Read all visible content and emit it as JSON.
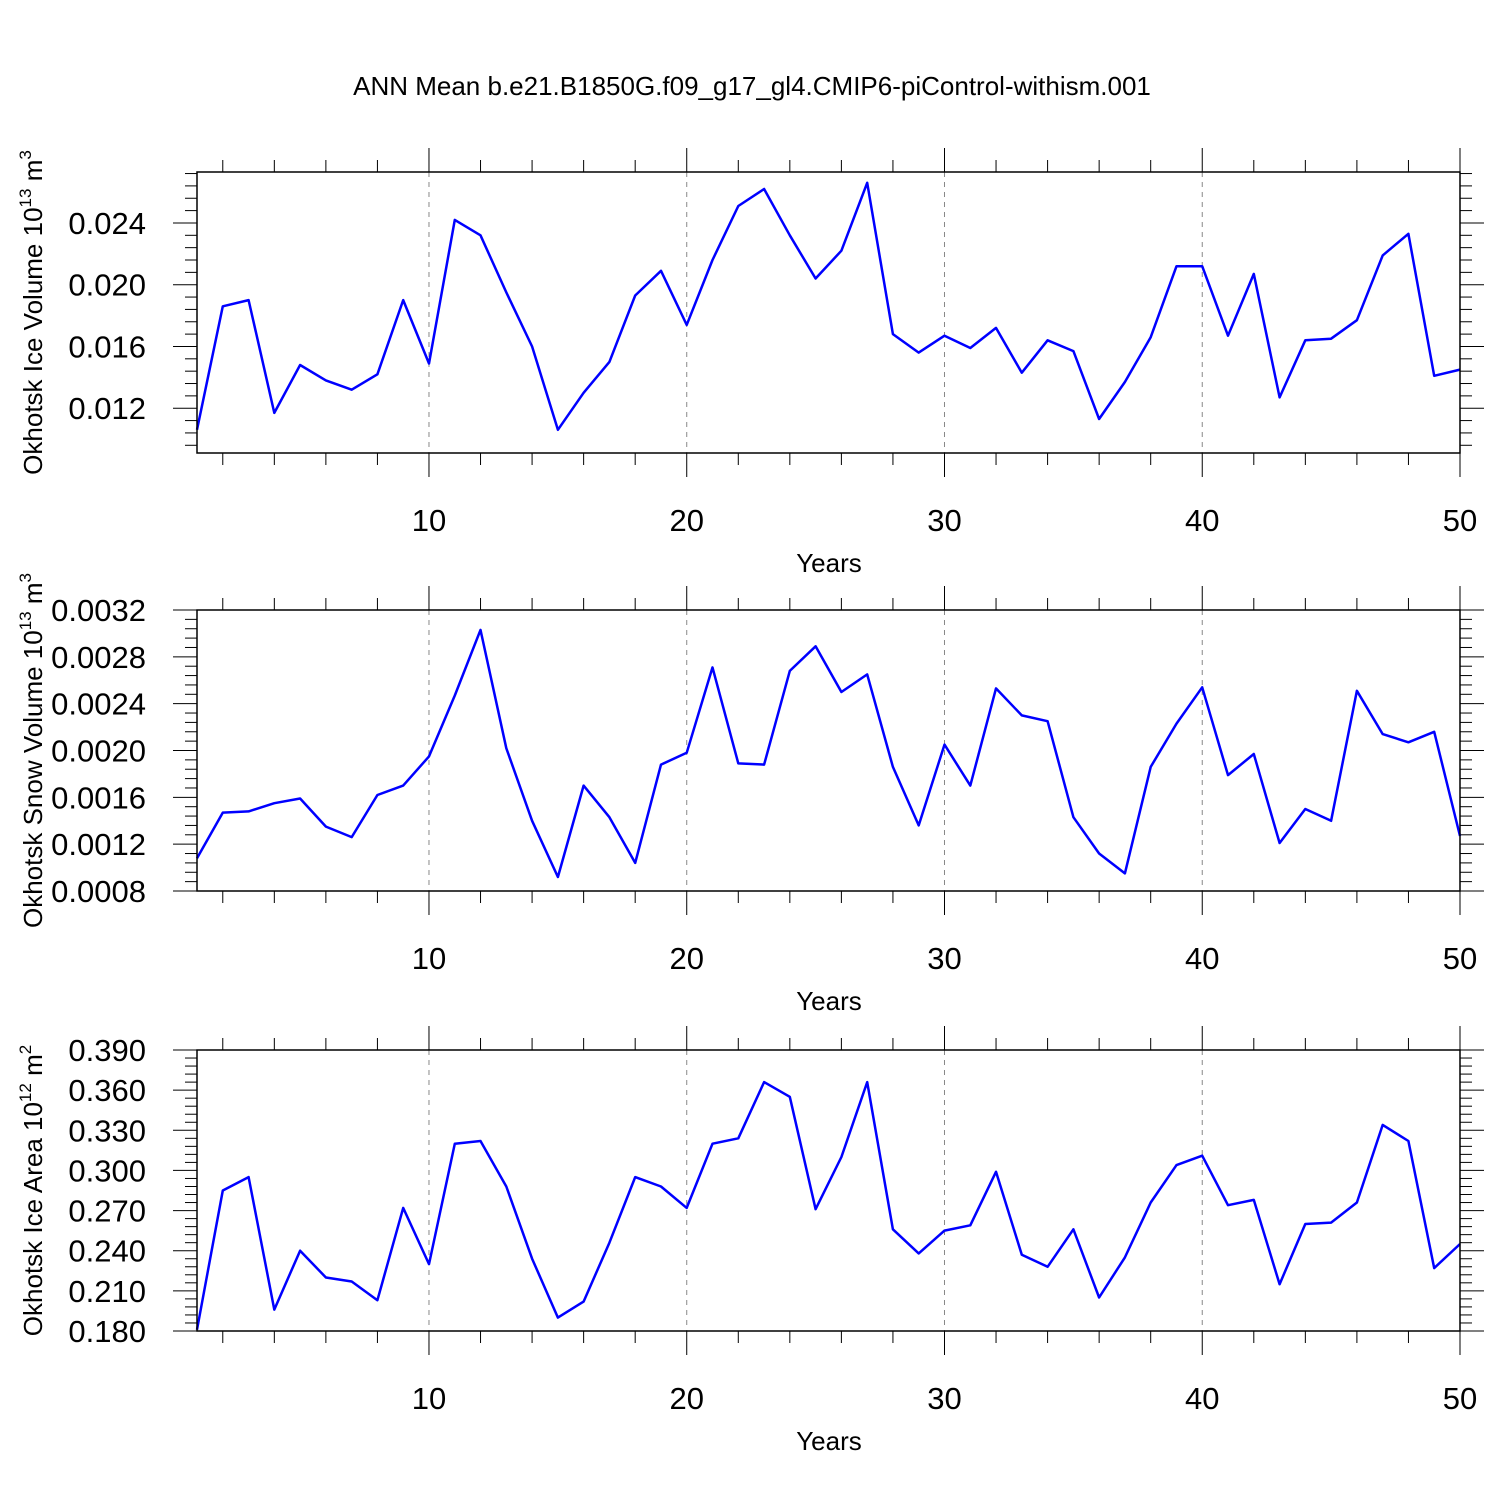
{
  "title": "ANN Mean b.e21.B1850G.f09_g17_gl4.CMIP6-piControl-withism.001",
  "line_color": "#0000ff",
  "chart_data": [
    {
      "type": "line",
      "ylabel_main": "Okhotsk Ice Volume 10",
      "ylabel_exp": "13",
      "ylabel_unit": " m",
      "ylabel_unit_exp": "3",
      "xlabel": "Years",
      "xlim": [
        1,
        50
      ],
      "ylim": [
        0.0091,
        0.0273
      ],
      "xticks": [
        10,
        20,
        30,
        40,
        50
      ],
      "xtick_labels": [
        "10",
        "20",
        "30",
        "40",
        "50"
      ],
      "yticks": [
        0.012,
        0.016,
        0.02,
        0.024
      ],
      "ytick_labels": [
        "0.012",
        "0.016",
        "0.020",
        "0.024"
      ],
      "grid": "dashed vertical at x ticks",
      "x": [
        1,
        2,
        3,
        4,
        5,
        6,
        7,
        8,
        9,
        10,
        11,
        12,
        13,
        14,
        15,
        16,
        17,
        18,
        19,
        20,
        21,
        22,
        23,
        24,
        25,
        26,
        27,
        28,
        29,
        30,
        31,
        32,
        33,
        34,
        35,
        36,
        37,
        38,
        39,
        40,
        41,
        42,
        43,
        44,
        45,
        46,
        47,
        48,
        49,
        50
      ],
      "series": [
        {
          "values": [
            0.0106,
            0.0186,
            0.019,
            0.0117,
            0.0148,
            0.0138,
            0.0132,
            0.0142,
            0.019,
            0.0149,
            0.0242,
            0.0232,
            0.0195,
            0.016,
            0.0106,
            0.013,
            0.015,
            0.0193,
            0.0209,
            0.0174,
            0.0216,
            0.0251,
            0.0262,
            0.0232,
            0.0204,
            0.0222,
            0.0266,
            0.0168,
            0.0156,
            0.0167,
            0.0159,
            0.0172,
            0.0143,
            0.0164,
            0.0157,
            0.0113,
            0.0137,
            0.0166,
            0.0212,
            0.0212,
            0.0167,
            0.0207,
            0.0127,
            0.0164,
            0.0165,
            0.0177,
            0.0219,
            0.0233,
            0.0141,
            0.0145
          ]
        }
      ]
    },
    {
      "type": "line",
      "ylabel_main": "Okhotsk Snow Volume 10",
      "ylabel_exp": "13",
      "ylabel_unit": " m",
      "ylabel_unit_exp": "3",
      "xlabel": "Years",
      "xlim": [
        1,
        50
      ],
      "ylim": [
        0.0008,
        0.0032
      ],
      "xticks": [
        10,
        20,
        30,
        40,
        50
      ],
      "xtick_labels": [
        "10",
        "20",
        "30",
        "40",
        "50"
      ],
      "yticks": [
        0.0008,
        0.0012,
        0.0016,
        0.002,
        0.0024,
        0.0028,
        0.0032
      ],
      "ytick_labels": [
        "0.0008",
        "0.0012",
        "0.0016",
        "0.0020",
        "0.0024",
        "0.0028",
        "0.0032"
      ],
      "grid": "dashed vertical at x ticks",
      "x": [
        1,
        2,
        3,
        4,
        5,
        6,
        7,
        8,
        9,
        10,
        11,
        12,
        13,
        14,
        15,
        16,
        17,
        18,
        19,
        20,
        21,
        22,
        23,
        24,
        25,
        26,
        27,
        28,
        29,
        30,
        31,
        32,
        33,
        34,
        35,
        36,
        37,
        38,
        39,
        40,
        41,
        42,
        43,
        44,
        45,
        46,
        47,
        48,
        49,
        50
      ],
      "series": [
        {
          "values": [
            0.00108,
            0.00147,
            0.00148,
            0.00155,
            0.00159,
            0.00135,
            0.00126,
            0.00162,
            0.0017,
            0.00195,
            0.00247,
            0.00303,
            0.00202,
            0.0014,
            0.00092,
            0.0017,
            0.00143,
            0.00104,
            0.00188,
            0.00198,
            0.00271,
            0.00189,
            0.00188,
            0.00268,
            0.00289,
            0.0025,
            0.00265,
            0.00186,
            0.00136,
            0.00205,
            0.0017,
            0.00253,
            0.0023,
            0.00225,
            0.00143,
            0.00112,
            0.00095,
            0.00186,
            0.00223,
            0.00254,
            0.00179,
            0.00197,
            0.00121,
            0.0015,
            0.0014,
            0.00251,
            0.00214,
            0.00207,
            0.00216,
            0.00127
          ]
        }
      ]
    },
    {
      "type": "line",
      "ylabel_main": "Okhotsk Ice Area 10",
      "ylabel_exp": "12",
      "ylabel_unit": " m",
      "ylabel_unit_exp": "2",
      "xlabel": "Years",
      "xlim": [
        1,
        50
      ],
      "ylim": [
        0.18,
        0.39
      ],
      "xticks": [
        10,
        20,
        30,
        40,
        50
      ],
      "xtick_labels": [
        "10",
        "20",
        "30",
        "40",
        "50"
      ],
      "yticks": [
        0.18,
        0.21,
        0.24,
        0.27,
        0.3,
        0.33,
        0.36,
        0.39
      ],
      "ytick_labels": [
        "0.180",
        "0.210",
        "0.240",
        "0.270",
        "0.300",
        "0.330",
        "0.360",
        "0.390"
      ],
      "grid": "dashed vertical at x ticks",
      "x": [
        1,
        2,
        3,
        4,
        5,
        6,
        7,
        8,
        9,
        10,
        11,
        12,
        13,
        14,
        15,
        16,
        17,
        18,
        19,
        20,
        21,
        22,
        23,
        24,
        25,
        26,
        27,
        28,
        29,
        30,
        31,
        32,
        33,
        34,
        35,
        36,
        37,
        38,
        39,
        40,
        41,
        42,
        43,
        44,
        45,
        46,
        47,
        48,
        49,
        50
      ],
      "series": [
        {
          "values": [
            0.181,
            0.285,
            0.295,
            0.196,
            0.24,
            0.22,
            0.217,
            0.203,
            0.272,
            0.23,
            0.32,
            0.322,
            0.288,
            0.234,
            0.19,
            0.202,
            0.246,
            0.295,
            0.288,
            0.272,
            0.32,
            0.324,
            0.366,
            0.355,
            0.271,
            0.31,
            0.366,
            0.256,
            0.238,
            0.255,
            0.259,
            0.299,
            0.237,
            0.228,
            0.256,
            0.205,
            0.235,
            0.276,
            0.304,
            0.311,
            0.274,
            0.278,
            0.215,
            0.26,
            0.261,
            0.276,
            0.334,
            0.322,
            0.227,
            0.245
          ]
        }
      ]
    }
  ]
}
